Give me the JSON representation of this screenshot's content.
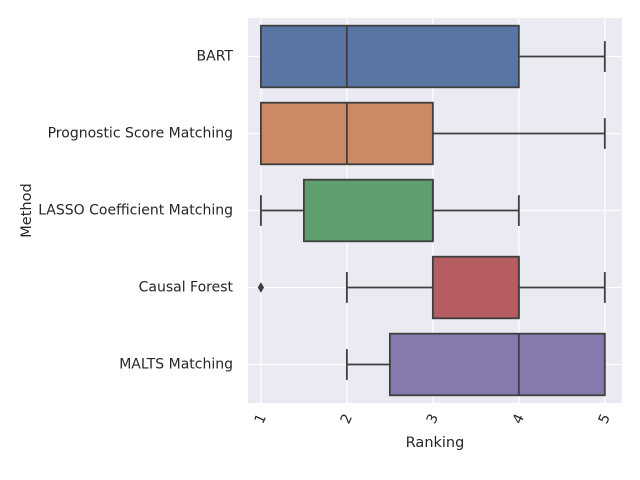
{
  "chart_data": {
    "type": "box",
    "orientation": "horizontal",
    "title": "",
    "xlabel": "Ranking",
    "ylabel": "Method",
    "xlim": [
      0.85,
      5.2
    ],
    "xticks": [
      "1",
      "2",
      "3",
      "4",
      "5"
    ],
    "grid": true,
    "categories": [
      "BART",
      "Prognostic Score Matching",
      "LASSO Coefficient Matching",
      "Causal Forest",
      "MALTS Matching"
    ],
    "boxes": [
      {
        "whisker_low": 1,
        "q1": 1,
        "median": 2,
        "q3": 4,
        "whisker_high": 5,
        "outliers": []
      },
      {
        "whisker_low": 1,
        "q1": 1,
        "median": 2,
        "q3": 3,
        "whisker_high": 5,
        "outliers": []
      },
      {
        "whisker_low": 1,
        "q1": 1.5,
        "median": 3,
        "q3": 3,
        "whisker_high": 4,
        "outliers": []
      },
      {
        "whisker_low": 2,
        "q1": 3,
        "median": 4,
        "q3": 4,
        "whisker_high": 5,
        "outliers": [
          1
        ]
      },
      {
        "whisker_low": 2,
        "q1": 2.5,
        "median": 4,
        "q3": 5,
        "whisker_high": 5,
        "outliers": []
      }
    ],
    "colors": [
      "#5875a4",
      "#cc8963",
      "#5f9e6e",
      "#b55d60",
      "#857aab"
    ],
    "plot_bg": "#eaeaf2",
    "grid_color": "#ffffff",
    "line_color": "#3f3f3f"
  }
}
